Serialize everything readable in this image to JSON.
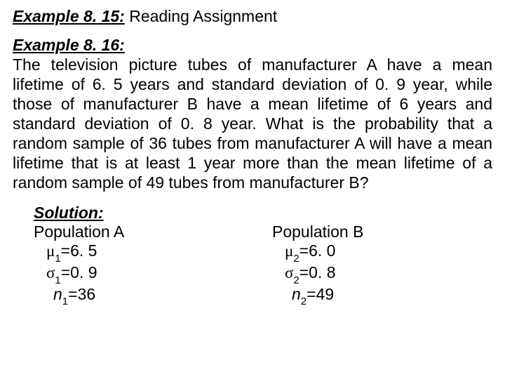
{
  "colors": {
    "background": "#ffffff",
    "text": "#000000"
  },
  "typography": {
    "body_fontsize": 23,
    "font_family": "Arial"
  },
  "ex815": {
    "label": "Example 8. 15:",
    "title": " Reading Assignment"
  },
  "ex816": {
    "label": "Example 8. 16:",
    "body": "The television picture tubes of manufacturer A have a mean lifetime of 6. 5 years and standard deviation of 0. 9 year, while those of manufacturer B have a mean lifetime of 6 years and standard deviation of 0. 8 year. What is the probability that a random sample of 36 tubes from manufacturer A will have a mean lifetime that is at least 1 year more than the mean lifetime of a random sample of 49 tubes from manufacturer B?"
  },
  "solution": {
    "label": "Solution:",
    "populations": {
      "A": {
        "title": "Population A",
        "mu_sub": "1",
        "mu_val": "=6. 5",
        "sigma_sub": "1",
        "sigma_val": "=0. 9",
        "n_sub": "1",
        "n_val": "=36"
      },
      "B": {
        "title": "Population B",
        "mu_sub": "2",
        "mu_val": "=6. 0",
        "sigma_sub": "2",
        "sigma_val": "=0. 8",
        "n_sub": "2",
        "n_val": "=49"
      }
    }
  }
}
